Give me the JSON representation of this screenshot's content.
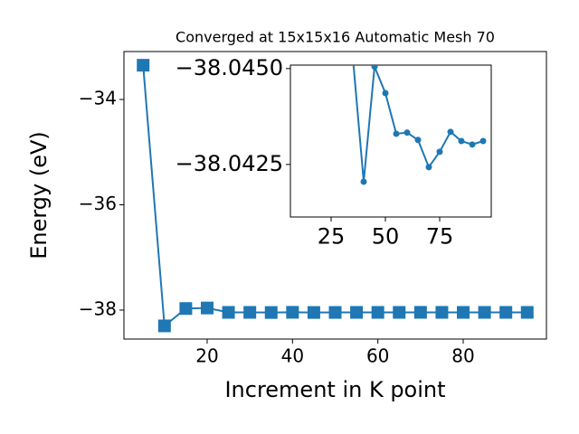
{
  "chart_data": [
    {
      "type": "line",
      "title": "Converged at 15x15x16 Automatic Mesh 70",
      "xlabel": "Increment in K point",
      "ylabel": "Energy (eV)",
      "x": [
        5,
        10,
        15,
        20,
        25,
        30,
        35,
        40,
        45,
        50,
        55,
        60,
        65,
        70,
        75,
        80,
        85,
        90,
        95
      ],
      "series": [
        {
          "color": "#1f77b4",
          "marker": "square",
          "values": [
            -33.35,
            -38.3,
            -37.97,
            -37.96,
            -38.043,
            -38.043,
            -38.0453,
            -38.04205,
            -38.04505,
            -38.04436,
            -38.0433,
            -38.04333,
            -38.04314,
            -38.04243,
            -38.04283,
            -38.04335,
            -38.04311,
            -38.04302,
            -38.04311
          ]
        }
      ],
      "xlim": [
        0.5,
        99.5
      ],
      "ylim": [
        -38.55,
        -33.09
      ],
      "xticks": [
        20,
        40,
        60,
        80
      ],
      "yticks": [
        {
          "value": -38,
          "label": "−38"
        },
        {
          "value": -36,
          "label": "−36"
        },
        {
          "value": -34,
          "label": "−34"
        }
      ]
    },
    {
      "type": "line",
      "x": [
        35,
        40,
        45,
        50,
        55,
        60,
        65,
        70,
        75,
        80,
        85,
        90,
        95
      ],
      "series": [
        {
          "color": "#1f77b4",
          "marker": "circle",
          "values": [
            -38.0453,
            -38.04205,
            -38.04505,
            -38.04436,
            -38.0433,
            -38.04333,
            -38.04314,
            -38.04243,
            -38.04283,
            -38.04335,
            -38.04311,
            -38.04302,
            -38.04311
          ]
        }
      ],
      "xlim": [
        6.25,
        98.75
      ],
      "ylim": [
        -38.04113,
        -38.04509
      ],
      "xticks": [
        25,
        50,
        75
      ],
      "yticks": [
        {
          "value": -38.045,
          "label": "−38.0450"
        },
        {
          "value": -38.0425,
          "label": "−38.0425"
        }
      ]
    }
  ]
}
